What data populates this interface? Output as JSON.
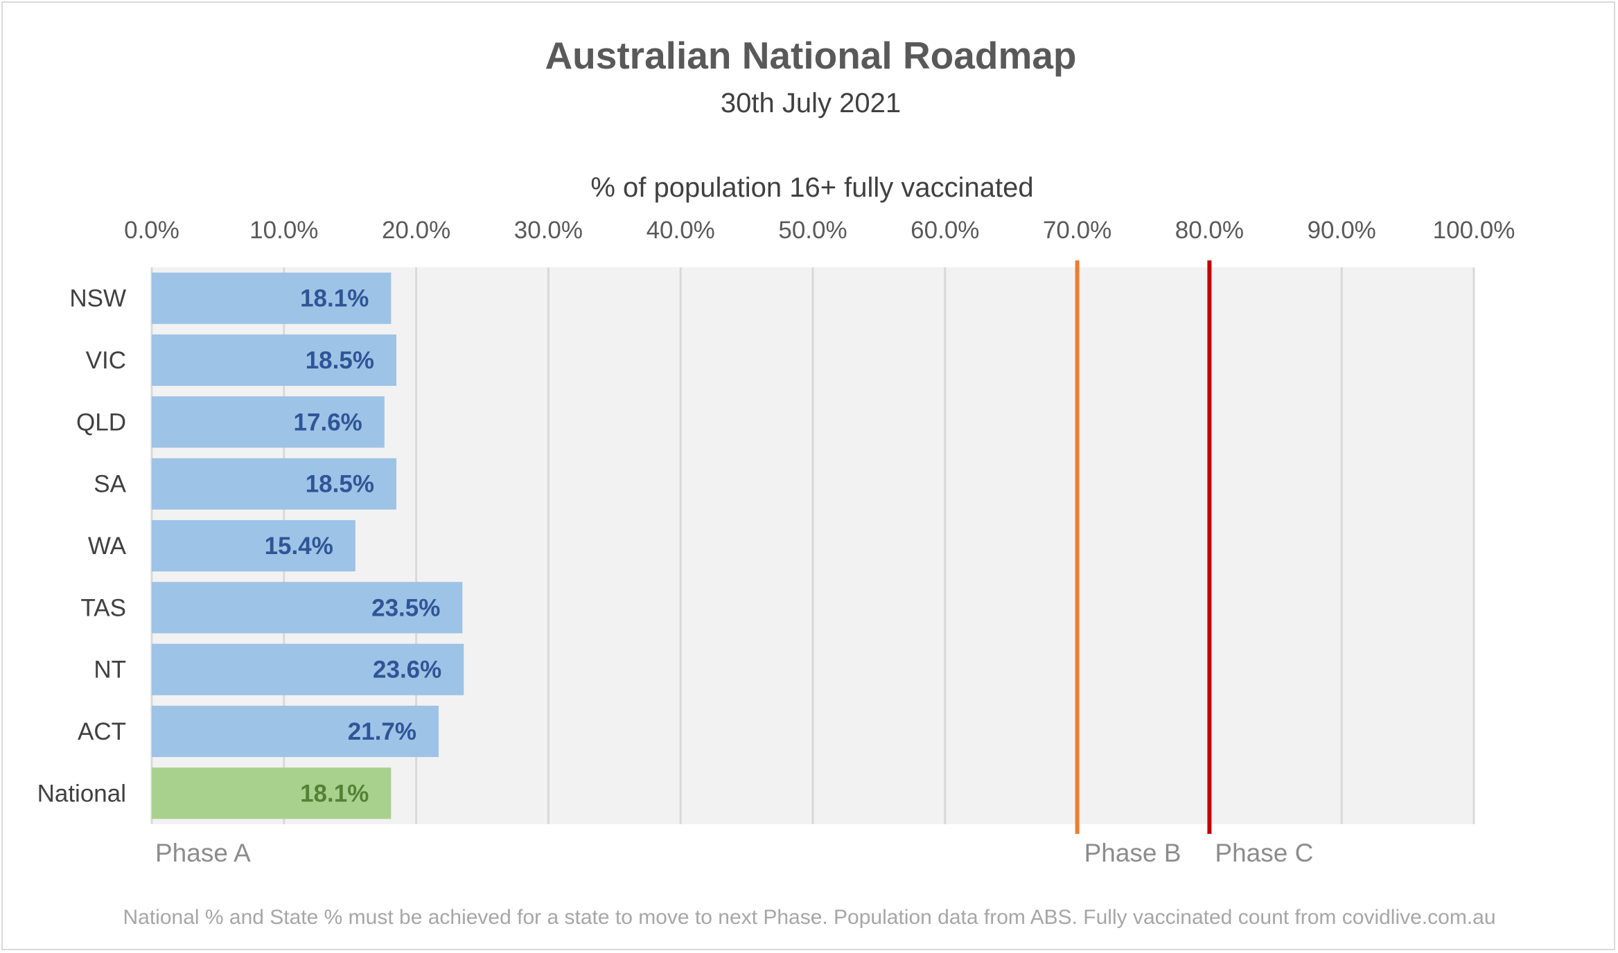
{
  "chart_data": {
    "type": "bar",
    "orientation": "horizontal",
    "title": "Australian National Roadmap",
    "subtitle": "30th July 2021",
    "xlabel": "% of population 16+ fully vaccinated",
    "ylabel": "",
    "xlim": [
      0,
      100
    ],
    "ticks": [
      "0.0%",
      "10.0%",
      "20.0%",
      "30.0%",
      "40.0%",
      "50.0%",
      "60.0%",
      "70.0%",
      "80.0%",
      "90.0%",
      "100.0%"
    ],
    "categories": [
      "NSW",
      "VIC",
      "QLD",
      "SA",
      "WA",
      "TAS",
      "NT",
      "ACT",
      "National"
    ],
    "values": [
      18.1,
      18.5,
      17.6,
      18.5,
      15.4,
      23.5,
      23.6,
      21.7,
      18.1
    ],
    "value_labels": [
      "18.1%",
      "18.5%",
      "17.6%",
      "18.5%",
      "15.4%",
      "23.5%",
      "23.6%",
      "21.7%",
      "18.1%"
    ],
    "bar_colors": [
      "#9dc3e6",
      "#9dc3e6",
      "#9dc3e6",
      "#9dc3e6",
      "#9dc3e6",
      "#9dc3e6",
      "#9dc3e6",
      "#9dc3e6",
      "#a9d18e"
    ],
    "label_colors": [
      "#2f5597",
      "#2f5597",
      "#2f5597",
      "#2f5597",
      "#2f5597",
      "#2f5597",
      "#2f5597",
      "#2f5597",
      "#548235"
    ],
    "grid": true,
    "plot_background": "#f2f2f2",
    "reference_lines": [
      {
        "name": "Phase B",
        "value": 70,
        "color": "#ed7d31"
      },
      {
        "name": "Phase C",
        "value": 80,
        "color": "#c00000"
      }
    ],
    "phase_labels": [
      "Phase A",
      "Phase B",
      "Phase C"
    ],
    "footnote": "National % and State % must be achieved for a state to move to next Phase. Population data from ABS. Fully vaccinated count from covidlive.com.au"
  }
}
